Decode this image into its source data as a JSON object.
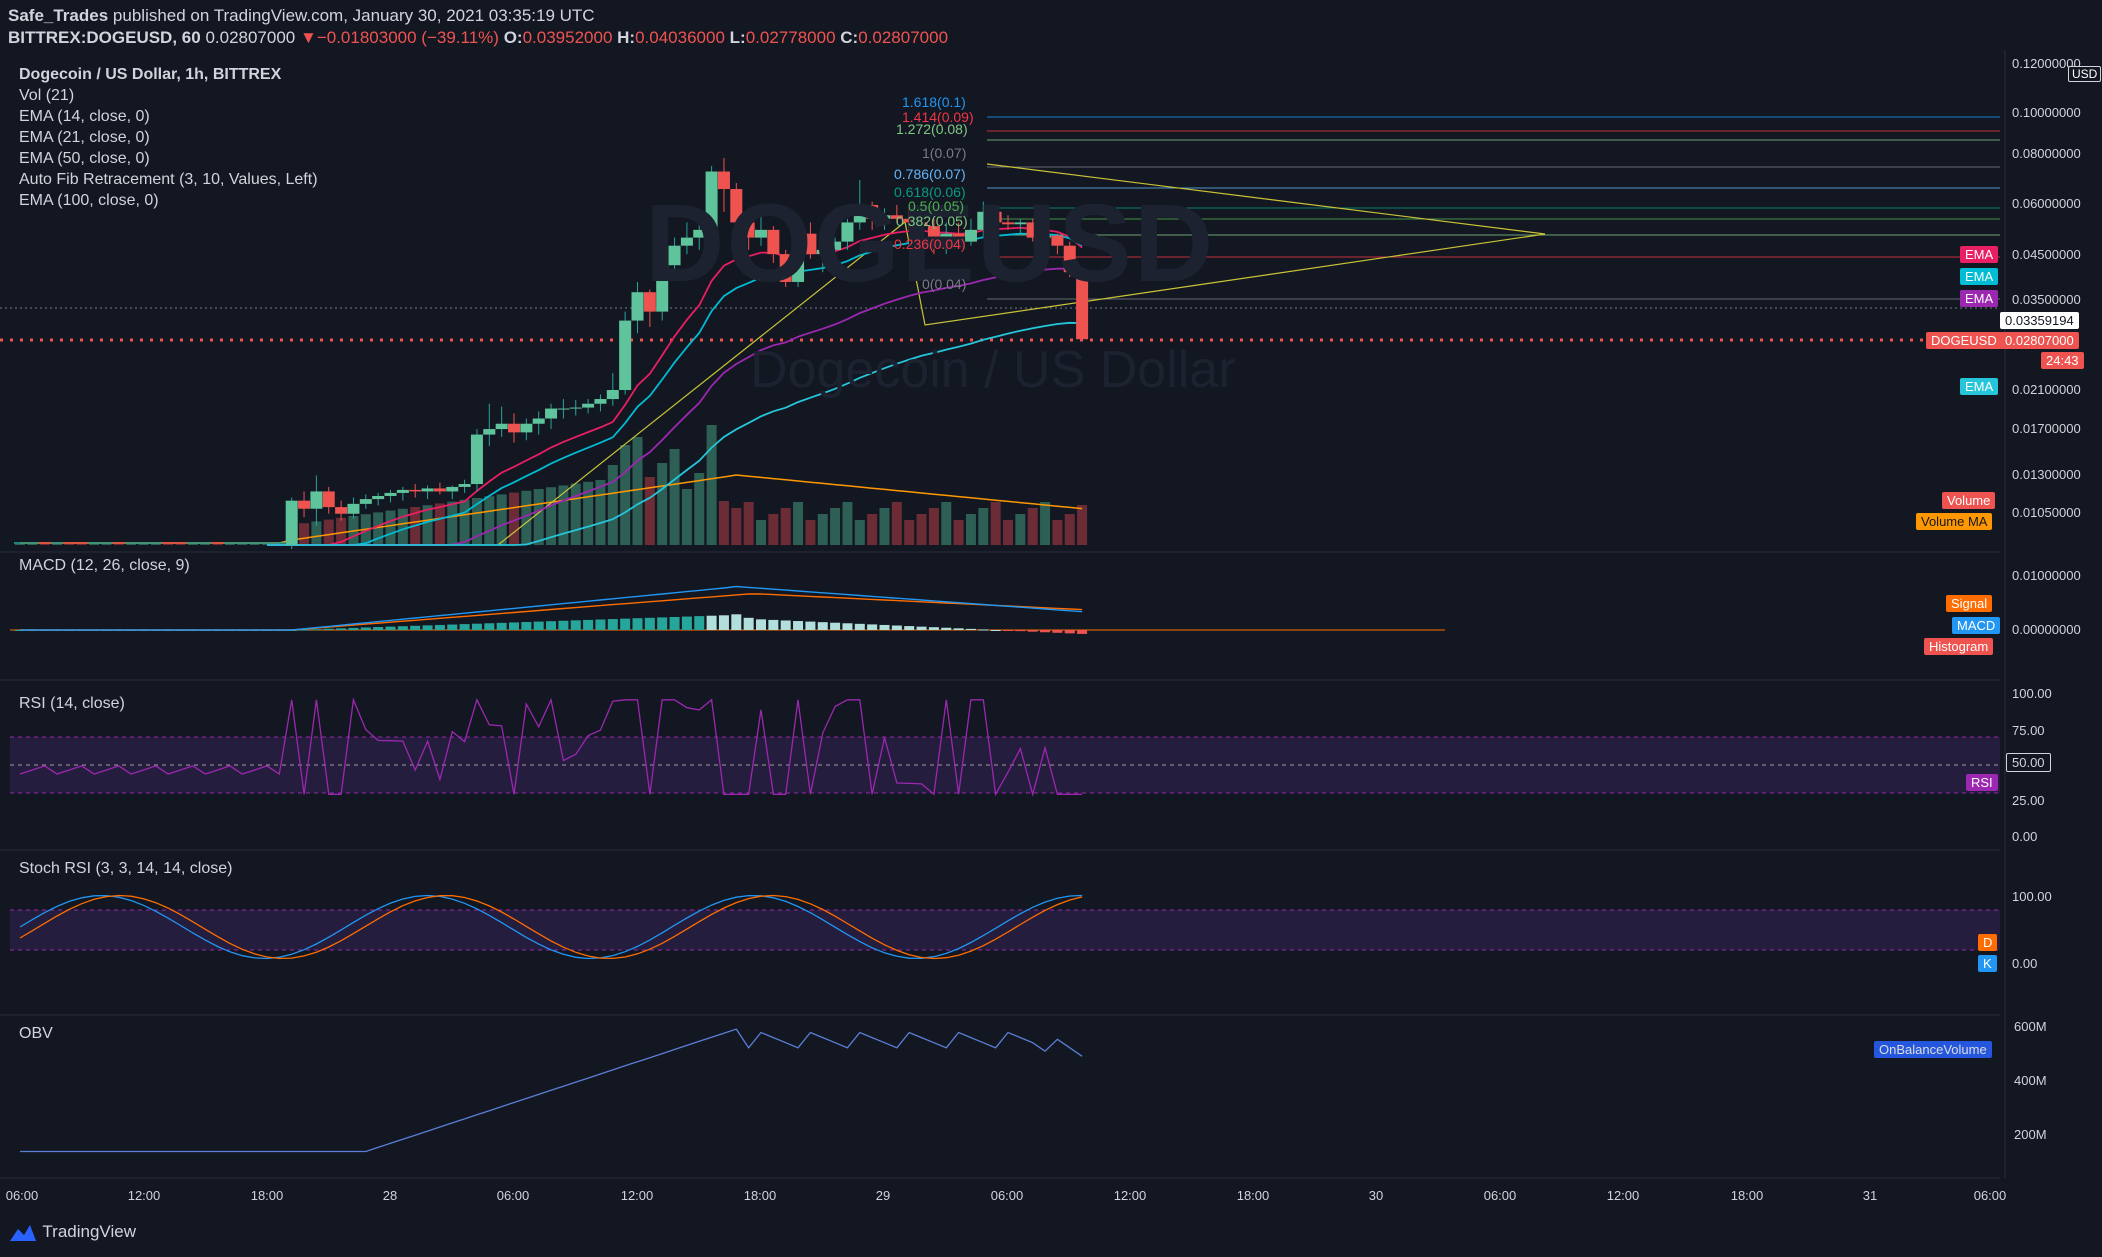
{
  "header": {
    "author": "Safe_Trades",
    "published": "published on TradingView.com, January 30, 2021 03:35:19 UTC",
    "symbol_line": "BITTREX:DOGEUSD, 60",
    "price": "0.02807000",
    "change": "−0.01803000 (−39.11%)",
    "o_label": "O:",
    "o": "0.03952000",
    "h_label": "H:",
    "h": "0.04036000",
    "l_label": "L:",
    "l": "0.02778000",
    "c_label": "C:",
    "c": "0.02807000"
  },
  "legend": {
    "title": "Dogecoin / US Dollar, 1h, BITTREX",
    "vol": "Vol (21)",
    "ema14": "EMA (14, close, 0)",
    "ema21": "EMA (21, close, 0)",
    "ema50": "EMA (50, close, 0)",
    "fib": "Auto Fib Retracement (3, 10, Values, Left)",
    "ema100": "EMA (100, close, 0)"
  },
  "watermark": {
    "symbol": "DOGEUSD",
    "sub": "Dogecoin / US Dollar"
  },
  "panes": {
    "macd": "MACD (12, 26, close, 9)",
    "rsi": "RSI (14, close)",
    "stoch": "Stoch RSI (3, 3, 14, 14, close)",
    "obv": "OBV"
  },
  "price_axis": {
    "currency": "USD",
    "ticks": [
      "0.12000000",
      "0.10000000",
      "0.08000000",
      "0.06000000",
      "0.04500000",
      "0.03500000",
      "0.02100000",
      "0.01700000",
      "0.01300000",
      "0.01050000"
    ],
    "current_line": "0.03359194",
    "last_price": "0.02807000",
    "symbol_tag": "DOGEUSD",
    "countdown": "24:43"
  },
  "macd_axis": {
    "ticks": [
      "0.01000000",
      "0.00000000"
    ]
  },
  "rsi_axis": {
    "ticks": [
      "100.00",
      "75.00",
      "25.00",
      "0.00"
    ],
    "mid": "50.00"
  },
  "stoch_axis": {
    "ticks": [
      "100.00",
      "0.00"
    ]
  },
  "obv_axis": {
    "ticks": [
      "600M",
      "400M",
      "200M"
    ]
  },
  "time_axis": {
    "ticks": [
      "06:00",
      "12:00",
      "18:00",
      "28",
      "06:00",
      "12:00",
      "18:00",
      "29",
      "06:00",
      "12:00",
      "18:00",
      "30",
      "06:00",
      "12:00",
      "18:00",
      "31",
      "06:00"
    ]
  },
  "tags": {
    "ema_a": "EMA",
    "ema_b": "EMA",
    "ema_c": "EMA",
    "ema_d": "EMA",
    "volume": "Volume",
    "volume_ma": "Volume MA",
    "signal": "Signal",
    "macd": "MACD",
    "histogram": "Histogram",
    "rsi": "RSI",
    "d": "D",
    "k": "K",
    "obv": "OnBalanceVolume"
  },
  "fib_levels": [
    {
      "label": "1.618(0.1)",
      "color": "#2196f3"
    },
    {
      "label": "1.414(0.09)",
      "color": "#f23645"
    },
    {
      "label": "1.272(0.08)",
      "color": "#81c784"
    },
    {
      "label": "1(0.07)",
      "color": "#787b86"
    },
    {
      "label": "0.786(0.07)",
      "color": "#64b5f6"
    },
    {
      "label": "0.618(0.06)",
      "color": "#089981"
    },
    {
      "label": "0.5(0.05)",
      "color": "#4caf50"
    },
    {
      "label": "0.382(0.05)",
      "color": "#81c784"
    },
    {
      "label": "0.236(0.04)",
      "color": "#f23645"
    },
    {
      "label": "0(0.04)",
      "color": "#787b86"
    }
  ],
  "brand": "TradingView",
  "colors": {
    "up": "#26a69a",
    "down": "#ef5350",
    "ema14": "#e91e63",
    "ema21": "#00bcd4",
    "ema50": "#9c27b0",
    "ema100": "#26c6da",
    "signal": "#ff6d00",
    "macd": "#2196f3",
    "rsi": "#9c27b0",
    "obv": "#2962ff",
    "triangle": "#c9c437"
  },
  "chart_data": {
    "type": "candlestick",
    "title": "Dogecoin / US Dollar, 1h, BITTREX",
    "log_scale": true,
    "ylim": [
      0.0095,
      0.125
    ],
    "candles": [
      [
        0.00735,
        0.0074,
        0.0073,
        0.00738
      ],
      [
        0.00738,
        0.00745,
        0.00733,
        0.0074
      ],
      [
        0.0074,
        0.00742,
        0.00735,
        0.00737
      ],
      [
        0.00737,
        0.00745,
        0.00732,
        0.00742
      ],
      [
        0.00742,
        0.00748,
        0.00738,
        0.00741
      ],
      [
        0.00741,
        0.00746,
        0.00736,
        0.00739
      ],
      [
        0.00739,
        0.00744,
        0.00735,
        0.00743
      ],
      [
        0.00743,
        0.00747,
        0.00739,
        0.00745
      ],
      [
        0.00745,
        0.0075,
        0.00741,
        0.00744
      ],
      [
        0.00744,
        0.00748,
        0.00739,
        0.00746
      ],
      [
        0.00746,
        0.00752,
        0.00742,
        0.00748
      ],
      [
        0.00748,
        0.00755,
        0.00744,
        0.0075
      ],
      [
        0.0075,
        0.00755,
        0.00745,
        0.00748
      ],
      [
        0.00748,
        0.00753,
        0.00742,
        0.00745
      ],
      [
        0.00745,
        0.0075,
        0.0074,
        0.00747
      ],
      [
        0.00747,
        0.00752,
        0.00743,
        0.00749
      ],
      [
        0.00749,
        0.00754,
        0.00744,
        0.00746
      ],
      [
        0.00746,
        0.00751,
        0.00741,
        0.00748
      ],
      [
        0.00748,
        0.00752,
        0.00743,
        0.0075
      ],
      [
        0.0075,
        0.00756,
        0.00746,
        0.00752
      ],
      [
        0.00752,
        0.00758,
        0.00747,
        0.00754
      ],
      [
        0.00754,
        0.0076,
        0.00749,
        0.00756
      ],
      [
        0.0095,
        0.0122,
        0.0093,
        0.012
      ],
      [
        0.012,
        0.0126,
        0.011,
        0.0115
      ],
      [
        0.0115,
        0.0137,
        0.0105,
        0.0126
      ],
      [
        0.0126,
        0.0129,
        0.0112,
        0.0116
      ],
      [
        0.0116,
        0.012,
        0.0108,
        0.0112
      ],
      [
        0.0112,
        0.0122,
        0.0109,
        0.0118
      ],
      [
        0.0118,
        0.0124,
        0.0115,
        0.0121
      ],
      [
        0.0121,
        0.0125,
        0.0117,
        0.0123
      ],
      [
        0.0123,
        0.0127,
        0.0119,
        0.0125
      ],
      [
        0.0125,
        0.0129,
        0.012,
        0.0127
      ],
      [
        0.0127,
        0.0131,
        0.0122,
        0.0126
      ],
      [
        0.0126,
        0.013,
        0.0121,
        0.0128
      ],
      [
        0.0128,
        0.0132,
        0.0124,
        0.0126
      ],
      [
        0.0126,
        0.013,
        0.0121,
        0.0129
      ],
      [
        0.0129,
        0.0134,
        0.0125,
        0.0131
      ],
      [
        0.0131,
        0.0175,
        0.0126,
        0.017
      ],
      [
        0.017,
        0.02,
        0.016,
        0.0175
      ],
      [
        0.0175,
        0.0197,
        0.0168,
        0.018
      ],
      [
        0.018,
        0.019,
        0.0163,
        0.0172
      ],
      [
        0.0172,
        0.0185,
        0.0165,
        0.018
      ],
      [
        0.018,
        0.0192,
        0.017,
        0.0185
      ],
      [
        0.0185,
        0.02,
        0.0175,
        0.0195
      ],
      [
        0.0195,
        0.0205,
        0.0185,
        0.0195
      ],
      [
        0.0195,
        0.0204,
        0.0188,
        0.0196
      ],
      [
        0.0196,
        0.0205,
        0.019,
        0.02
      ],
      [
        0.02,
        0.021,
        0.0192,
        0.0205
      ],
      [
        0.0205,
        0.0235,
        0.0198,
        0.0215
      ],
      [
        0.0215,
        0.0325,
        0.021,
        0.031
      ],
      [
        0.031,
        0.038,
        0.029,
        0.036
      ],
      [
        0.036,
        0.0365,
        0.03,
        0.0325
      ],
      [
        0.0325,
        0.042,
        0.031,
        0.0415
      ],
      [
        0.0415,
        0.048,
        0.04,
        0.046
      ],
      [
        0.046,
        0.052,
        0.044,
        0.048
      ],
      [
        0.048,
        0.053,
        0.045,
        0.05
      ],
      [
        0.05,
        0.07,
        0.048,
        0.068
      ],
      [
        0.068,
        0.073,
        0.055,
        0.062
      ],
      [
        0.062,
        0.064,
        0.042,
        0.052
      ],
      [
        0.052,
        0.056,
        0.045,
        0.048
      ],
      [
        0.048,
        0.054,
        0.046,
        0.05
      ],
      [
        0.05,
        0.051,
        0.042,
        0.044
      ],
      [
        0.044,
        0.045,
        0.037,
        0.038
      ],
      [
        0.038,
        0.052,
        0.037,
        0.049
      ],
      [
        0.049,
        0.052,
        0.043,
        0.044
      ],
      [
        0.044,
        0.046,
        0.04,
        0.045
      ],
      [
        0.045,
        0.048,
        0.043,
        0.047
      ],
      [
        0.047,
        0.053,
        0.045,
        0.052
      ],
      [
        0.052,
        0.065,
        0.05,
        0.057
      ],
      [
        0.057,
        0.058,
        0.05,
        0.053
      ],
      [
        0.053,
        0.056,
        0.05,
        0.054
      ],
      [
        0.054,
        0.057,
        0.052,
        0.053
      ],
      [
        0.053,
        0.056,
        0.05,
        0.052
      ],
      [
        0.052,
        0.054,
        0.048,
        0.051
      ],
      [
        0.051,
        0.053,
        0.044,
        0.046
      ],
      [
        0.046,
        0.052,
        0.044,
        0.049
      ],
      [
        0.049,
        0.052,
        0.046,
        0.047
      ],
      [
        0.047,
        0.053,
        0.046,
        0.05
      ],
      [
        0.05,
        0.058,
        0.048,
        0.055
      ],
      [
        0.055,
        0.056,
        0.05,
        0.052
      ],
      [
        0.052,
        0.054,
        0.05,
        0.0515
      ],
      [
        0.0515,
        0.053,
        0.049,
        0.052
      ],
      [
        0.052,
        0.053,
        0.047,
        0.048
      ],
      [
        0.048,
        0.049,
        0.047,
        0.0485
      ],
      [
        0.0485,
        0.049,
        0.044,
        0.046
      ],
      [
        0.046,
        0.047,
        0.039,
        0.04
      ],
      [
        0.0395,
        0.0404,
        0.0278,
        0.0281
      ]
    ],
    "ema14_end": 0.0448,
    "ema21_end": 0.0445,
    "ema50_end": 0.036,
    "ema100_end": 0.0275,
    "triangle": {
      "apex": 0.05,
      "upper_start": 0.076,
      "lower_start": 0.031
    },
    "fib_values": [
      0.1,
      0.09,
      0.08,
      0.07,
      0.07,
      0.06,
      0.05,
      0.05,
      0.04,
      0.04
    ]
  }
}
